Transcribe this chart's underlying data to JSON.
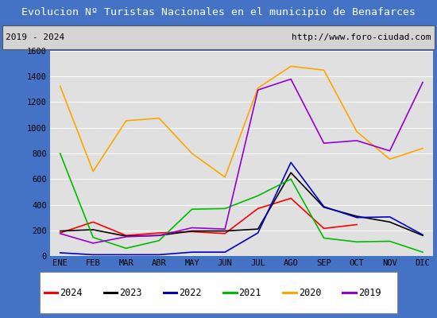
{
  "title": "Evolucion Nº Turistas Nacionales en el municipio de Benafarces",
  "subtitle_left": "2019 - 2024",
  "subtitle_right": "http://www.foro-ciudad.com",
  "months": [
    "ENE",
    "FEB",
    "MAR",
    "ABR",
    "MAY",
    "JUN",
    "JUL",
    "AGO",
    "SEP",
    "OCT",
    "NOV",
    "DIC"
  ],
  "series": {
    "2024": [
      180,
      265,
      160,
      180,
      190,
      175,
      370,
      450,
      215,
      245,
      null,
      null
    ],
    "2023": [
      195,
      205,
      155,
      160,
      195,
      195,
      210,
      650,
      380,
      310,
      265,
      160
    ],
    "2022": [
      25,
      10,
      10,
      10,
      30,
      30,
      180,
      730,
      385,
      300,
      305,
      165
    ],
    "2021": [
      800,
      145,
      60,
      120,
      365,
      370,
      470,
      600,
      140,
      110,
      115,
      30
    ],
    "2020": [
      1325,
      660,
      1055,
      1075,
      800,
      615,
      1310,
      1480,
      1450,
      970,
      755,
      840
    ],
    "2019": [
      175,
      100,
      150,
      160,
      220,
      210,
      1295,
      1380,
      880,
      900,
      820,
      1355
    ]
  },
  "colors": {
    "2024": "#ff0000",
    "2023": "#000000",
    "2022": "#0000cc",
    "2021": "#00bb00",
    "2020": "#ffa500",
    "2019": "#9400d3"
  },
  "ylim": [
    0,
    1600
  ],
  "yticks": [
    0,
    200,
    400,
    600,
    800,
    1000,
    1200,
    1400,
    1600
  ],
  "title_bg_color": "#4472c4",
  "title_text_color": "#ffffff",
  "plot_bg_color": "#e0e0e0",
  "grid_color": "#ffffff",
  "border_color": "#4472c4",
  "subtitle_bg": "#d4d4d4",
  "legend_order": [
    "2024",
    "2023",
    "2022",
    "2021",
    "2020",
    "2019"
  ]
}
